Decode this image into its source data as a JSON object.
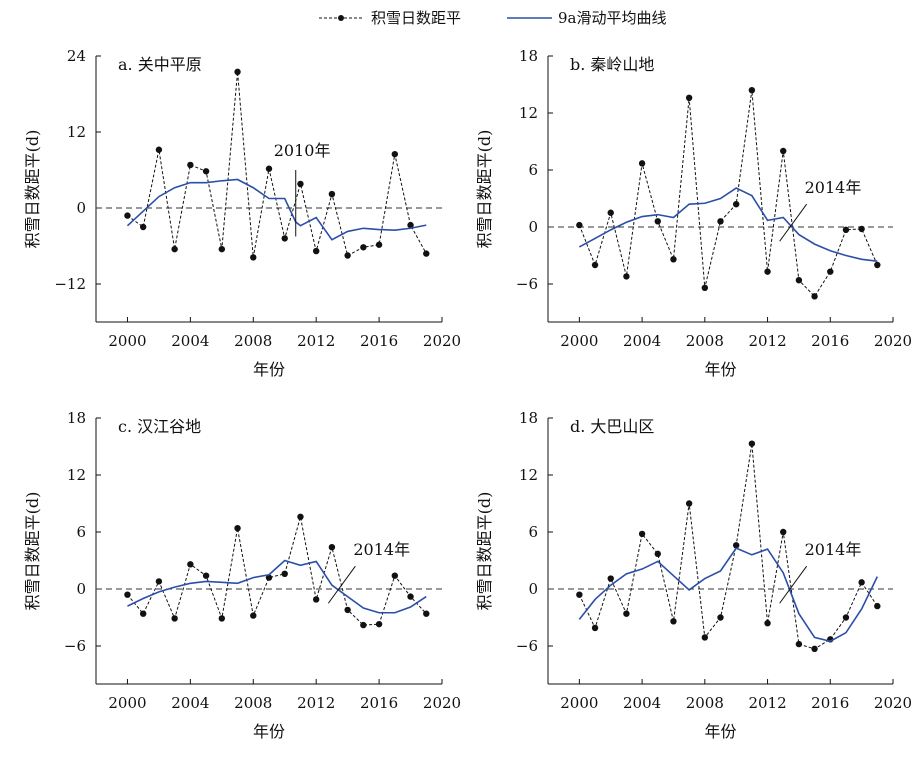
{
  "legend": {
    "anomaly_label": "积雪日数距平",
    "moving_avg_label": "9a滑动平均曲线",
    "anomaly_color": "#111111",
    "moving_avg_color": "#2b4fa8"
  },
  "chart_data": [
    {
      "type": "line",
      "panel_label": "a. 关中平原",
      "xlabel": "年份",
      "ylabel": "积雪日数距平(d)",
      "xlim": [
        1998,
        2020
      ],
      "xticks": [
        2000,
        2004,
        2008,
        2012,
        2016,
        2020
      ],
      "ylim": [
        -18,
        24
      ],
      "yticks": [
        24,
        12,
        0,
        -12
      ],
      "zero_line": true,
      "annotation": {
        "text": "2010年",
        "year": 2010.7,
        "line": "vertical"
      },
      "x": [
        2000,
        2001,
        2002,
        2003,
        2004,
        2005,
        2006,
        2007,
        2008,
        2009,
        2010,
        2011,
        2012,
        2013,
        2014,
        2015,
        2016,
        2017,
        2018,
        2019
      ],
      "series": [
        {
          "name": "积雪日数距平",
          "style": "dashed-markers",
          "values": [
            -1.2,
            -3,
            9.2,
            -6.5,
            6.8,
            5.8,
            -6.5,
            21.5,
            -7.8,
            6.2,
            -4.8,
            3.8,
            -6.8,
            2.2,
            -7.5,
            -6.2,
            -5.8,
            8.5,
            -2.7,
            -7.2
          ]
        },
        {
          "name": "9a滑动平均曲线",
          "style": "solid",
          "x": [
            2000,
            2001,
            2002,
            2003,
            2004,
            2005,
            2006,
            2007,
            2008,
            2009,
            2010,
            2010.7,
            2011,
            2012,
            2013,
            2014,
            2015,
            2016,
            2017,
            2018,
            2019
          ],
          "values": [
            -2.8,
            -0.5,
            1.8,
            3.2,
            4,
            4,
            4.3,
            4.5,
            3.2,
            1.5,
            1.5,
            -2.2,
            -2.8,
            -1.5,
            -5,
            -3.7,
            -3.2,
            -3.4,
            -3.5,
            -3.2,
            -2.7
          ]
        }
      ]
    },
    {
      "type": "line",
      "panel_label": "b. 秦岭山地",
      "xlabel": "年份",
      "ylabel": "积雪日数距平(d)",
      "xlim": [
        1998,
        2020
      ],
      "xticks": [
        2000,
        2004,
        2008,
        2012,
        2016,
        2020
      ],
      "ylim": [
        -10,
        18
      ],
      "yticks": [
        18,
        12,
        6,
        0,
        -6
      ],
      "zero_line": true,
      "annotation": {
        "text": "2014年",
        "year": 2013.6,
        "line": "slanted"
      },
      "x": [
        2000,
        2001,
        2002,
        2003,
        2004,
        2005,
        2006,
        2007,
        2008,
        2009,
        2010,
        2011,
        2012,
        2013,
        2014,
        2015,
        2016,
        2017,
        2018,
        2019
      ],
      "series": [
        {
          "name": "积雪日数距平",
          "style": "dashed-markers",
          "values": [
            0.2,
            -4,
            1.5,
            -5.2,
            6.7,
            0.6,
            -3.4,
            13.6,
            -6.4,
            0.6,
            2.4,
            14.4,
            -4.7,
            8,
            -5.6,
            -7.3,
            -4.7,
            -0.3,
            -0.2,
            -4.0
          ]
        },
        {
          "name": "9a滑动平均曲线",
          "style": "solid",
          "values": [
            -2.1,
            -1.2,
            -0.3,
            0.5,
            1.1,
            1.3,
            1,
            2.4,
            2.5,
            3,
            4.1,
            3.3,
            0.7,
            1,
            -0.8,
            -1.8,
            -2.5,
            -3,
            -3.4,
            -3.6
          ]
        }
      ]
    },
    {
      "type": "line",
      "panel_label": "c. 汉江谷地",
      "xlabel": "年份",
      "ylabel": "积雪日数距平(d)",
      "xlim": [
        1998,
        2020
      ],
      "xticks": [
        2000,
        2004,
        2008,
        2012,
        2016,
        2020
      ],
      "ylim": [
        -10,
        18
      ],
      "yticks": [
        18,
        12,
        6,
        0,
        -6
      ],
      "zero_line": true,
      "annotation": {
        "text": "2014年",
        "year": 2013.6,
        "line": "slanted"
      },
      "x": [
        2000,
        2001,
        2002,
        2003,
        2004,
        2005,
        2006,
        2007,
        2008,
        2009,
        2010,
        2011,
        2012,
        2013,
        2014,
        2015,
        2016,
        2017,
        2018,
        2019
      ],
      "series": [
        {
          "name": "积雪日数距平",
          "style": "dashed-markers",
          "values": [
            -0.6,
            -2.6,
            0.8,
            -3.1,
            2.6,
            1.4,
            -3.1,
            6.4,
            -2.8,
            1.2,
            1.6,
            7.6,
            -1.1,
            4.4,
            -2.2,
            -3.8,
            -3.7,
            1.4,
            -0.8,
            -2.6
          ]
        },
        {
          "name": "9a滑动平均曲线",
          "style": "solid",
          "values": [
            -1.8,
            -1,
            -0.3,
            0.2,
            0.6,
            0.8,
            0.7,
            0.6,
            1.2,
            1.5,
            3,
            2.5,
            2.9,
            0.4,
            -0.8,
            -2,
            -2.5,
            -2.5,
            -1.9,
            -0.8
          ]
        }
      ]
    },
    {
      "type": "line",
      "panel_label": "d. 大巴山区",
      "xlabel": "年份",
      "ylabel": "积雪日数距平(d)",
      "xlim": [
        1998,
        2020
      ],
      "xticks": [
        2000,
        2004,
        2008,
        2012,
        2016,
        2020
      ],
      "ylim": [
        -10,
        18
      ],
      "yticks": [
        18,
        12,
        6,
        0,
        -6
      ],
      "zero_line": true,
      "annotation": {
        "text": "2014年",
        "year": 2013.6,
        "line": "slanted"
      },
      "x": [
        2000,
        2001,
        2002,
        2003,
        2004,
        2005,
        2006,
        2007,
        2008,
        2009,
        2010,
        2011,
        2012,
        2013,
        2014,
        2015,
        2016,
        2017,
        2018,
        2019
      ],
      "series": [
        {
          "name": "积雪日数距平",
          "style": "dashed-markers",
          "values": [
            -0.6,
            -4.1,
            1.1,
            -2.6,
            5.8,
            3.7,
            -3.4,
            9,
            -5.1,
            -3,
            4.6,
            15.3,
            -3.6,
            6,
            -5.8,
            -6.3,
            -5.3,
            -3,
            0.7,
            -1.8
          ]
        },
        {
          "name": "9a滑动平均曲线",
          "style": "solid",
          "values": [
            -3.2,
            -1.1,
            0.4,
            1.6,
            2.1,
            2.9,
            1.4,
            -0.1,
            1.1,
            1.9,
            4.3,
            3.6,
            4.2,
            1.7,
            -2.6,
            -5.1,
            -5.5,
            -4.6,
            -2.1,
            1.3
          ]
        }
      ]
    }
  ]
}
